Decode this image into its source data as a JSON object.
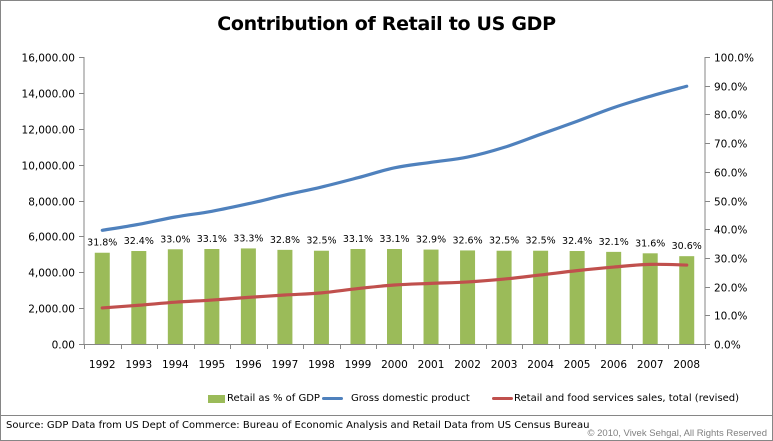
{
  "chart_data": {
    "type": "bar+line (dual axis)",
    "title": "Contribution of Retail to US GDP",
    "xlabel": "",
    "categories": [
      "1992",
      "1993",
      "1994",
      "1995",
      "1996",
      "1997",
      "1998",
      "1999",
      "2000",
      "2001",
      "2002",
      "2003",
      "2004",
      "2005",
      "2006",
      "2007",
      "2008"
    ],
    "left_axis": {
      "range": [
        0,
        16000
      ],
      "ticks": [
        "0.00",
        "2,000.00",
        "4,000.00",
        "6,000.00",
        "8,000.00",
        "10,000.00",
        "12,000.00",
        "14,000.00",
        "16,000.00"
      ],
      "tick_values": [
        0,
        2000,
        4000,
        6000,
        8000,
        10000,
        12000,
        14000,
        16000
      ]
    },
    "right_axis": {
      "range": [
        0,
        100
      ],
      "ticks": [
        "0.0%",
        "10.0%",
        "20.0%",
        "30.0%",
        "40.0%",
        "50.0%",
        "60.0%",
        "70.0%",
        "80.0%",
        "90.0%",
        "100.0%"
      ],
      "tick_values": [
        0,
        10,
        20,
        30,
        40,
        50,
        60,
        70,
        80,
        90,
        100
      ]
    },
    "grid": false,
    "legend_position": "bottom",
    "series": [
      {
        "name": "Retail as % of GDP",
        "type": "bar",
        "axis": "right",
        "color": "#9BBB59",
        "values": [
          31.8,
          32.4,
          33.0,
          33.1,
          33.3,
          32.8,
          32.5,
          33.1,
          33.1,
          32.9,
          32.6,
          32.5,
          32.5,
          32.4,
          32.1,
          31.6,
          30.6
        ],
        "data_labels": [
          "31.8%",
          "32.4%",
          "33.0%",
          "33.1%",
          "33.3%",
          "32.8%",
          "32.5%",
          "33.1%",
          "33.1%",
          "32.9%",
          "32.6%",
          "32.5%",
          "32.5%",
          "32.4%",
          "32.1%",
          "31.6%",
          "30.6%"
        ]
      },
      {
        "name": "Gross domestic product",
        "type": "line",
        "axis": "left",
        "color": "#4F81BD",
        "values": [
          6340,
          6670,
          7080,
          7400,
          7820,
          8300,
          8750,
          9270,
          9820,
          10130,
          10420,
          10960,
          11690,
          12420,
          13180,
          13810,
          14370
        ]
      },
      {
        "name": "Retail and food services sales, total  (revised)",
        "type": "line",
        "axis": "left",
        "color": "#C0504D",
        "values": [
          2010,
          2160,
          2330,
          2450,
          2600,
          2730,
          2850,
          3090,
          3290,
          3380,
          3460,
          3620,
          3850,
          4090,
          4290,
          4440,
          4400
        ]
      }
    ]
  },
  "footer": {
    "source": "Source: GDP Data from US Dept of Commerce: Bureau of Economic Analysis and Retail Data from US Census Bureau",
    "copyright": "© 2010, Vivek Sehgal, All Rights Reserved"
  }
}
